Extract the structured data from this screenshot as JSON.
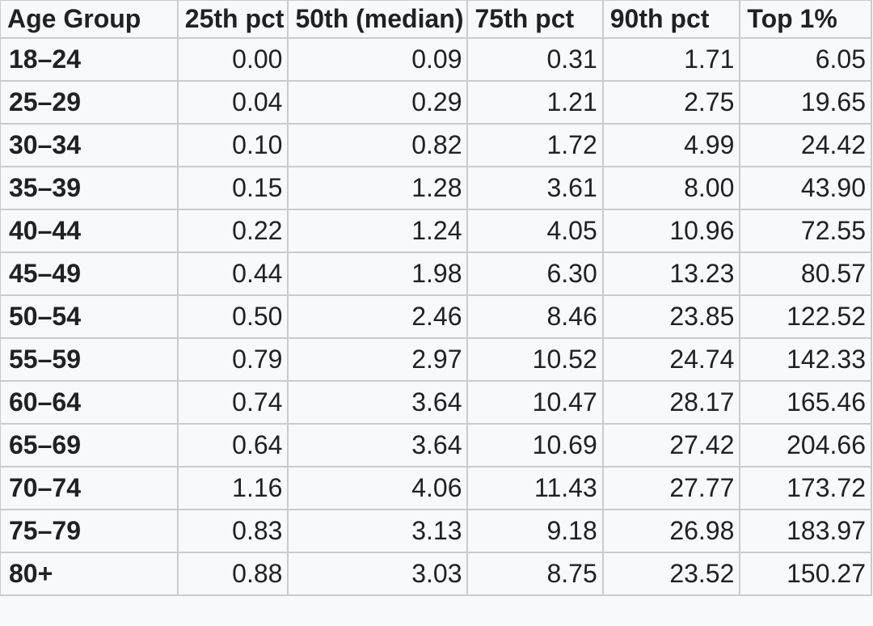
{
  "table": {
    "headers": [
      "Age Group",
      "25th pct",
      "50th (median)",
      "75th pct",
      "90th pct",
      "Top 1%"
    ],
    "rows": [
      {
        "label": "18–24",
        "values": [
          "0.00",
          "0.09",
          "0.31",
          "1.71",
          "6.05"
        ]
      },
      {
        "label": "25–29",
        "values": [
          "0.04",
          "0.29",
          "1.21",
          "2.75",
          "19.65"
        ]
      },
      {
        "label": "30–34",
        "values": [
          "0.10",
          "0.82",
          "1.72",
          "4.99",
          "24.42"
        ]
      },
      {
        "label": "35–39",
        "values": [
          "0.15",
          "1.28",
          "3.61",
          "8.00",
          "43.90"
        ]
      },
      {
        "label": "40–44",
        "values": [
          "0.22",
          "1.24",
          "4.05",
          "10.96",
          "72.55"
        ]
      },
      {
        "label": "45–49",
        "values": [
          "0.44",
          "1.98",
          "6.30",
          "13.23",
          "80.57"
        ]
      },
      {
        "label": "50–54",
        "values": [
          "0.50",
          "2.46",
          "8.46",
          "23.85",
          "122.52"
        ]
      },
      {
        "label": "55–59",
        "values": [
          "0.79",
          "2.97",
          "10.52",
          "24.74",
          "142.33"
        ]
      },
      {
        "label": "60–64",
        "values": [
          "0.74",
          "3.64",
          "10.47",
          "28.17",
          "165.46"
        ]
      },
      {
        "label": "65–69",
        "values": [
          "0.64",
          "3.64",
          "10.69",
          "27.42",
          "204.66"
        ]
      },
      {
        "label": "70–74",
        "values": [
          "1.16",
          "4.06",
          "11.43",
          "27.77",
          "173.72"
        ]
      },
      {
        "label": "75–79",
        "values": [
          "0.83",
          "3.13",
          "9.18",
          "26.98",
          "183.97"
        ]
      },
      {
        "label": "80+",
        "values": [
          "0.88",
          "3.03",
          "8.75",
          "23.52",
          "150.27"
        ]
      }
    ]
  }
}
